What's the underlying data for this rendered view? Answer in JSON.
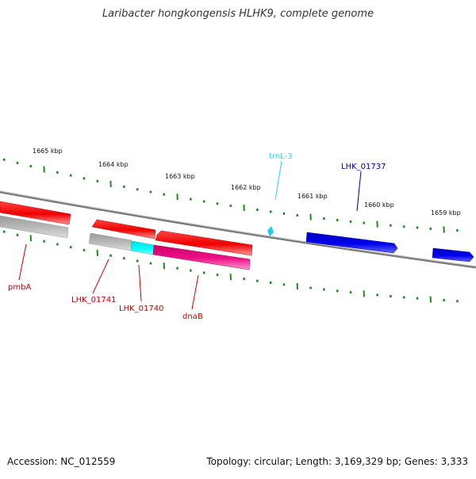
{
  "title": "Laribacter hongkongensis HLHK9, complete genome",
  "footer": {
    "accession": "Accession: NC_012559",
    "topology": "Topology: circular; Length: 3,169,329 bp; Genes: 3,333"
  },
  "ticks": [
    {
      "label": "1665 kbp"
    },
    {
      "label": "1664 kbp"
    },
    {
      "label": "1663 kbp"
    },
    {
      "label": "1662 kbp"
    },
    {
      "label": "1661 kbp"
    },
    {
      "label": "1660 kbp"
    },
    {
      "label": "1659 kbp"
    }
  ],
  "genes": [
    {
      "label": "pmbA",
      "color": "#cc0000"
    },
    {
      "label": "LHK_01741",
      "color": "#cc0000"
    },
    {
      "label": "LHK_01740",
      "color": "#cc0000"
    },
    {
      "label": "dnaB",
      "color": "#cc0000"
    },
    {
      "label": "trnL-3",
      "color": "#33ccee"
    },
    {
      "label": "LHK_01737",
      "color": "#000099"
    }
  ],
  "colors": {
    "forward_cds": "#0000dd",
    "reverse_cds": "#ee0000",
    "reverse_cds_alt": "#ee1188",
    "pseudo": "#aaaaaa",
    "trna": "#00eeff",
    "backbone": "#888888",
    "tick": "#228822"
  }
}
